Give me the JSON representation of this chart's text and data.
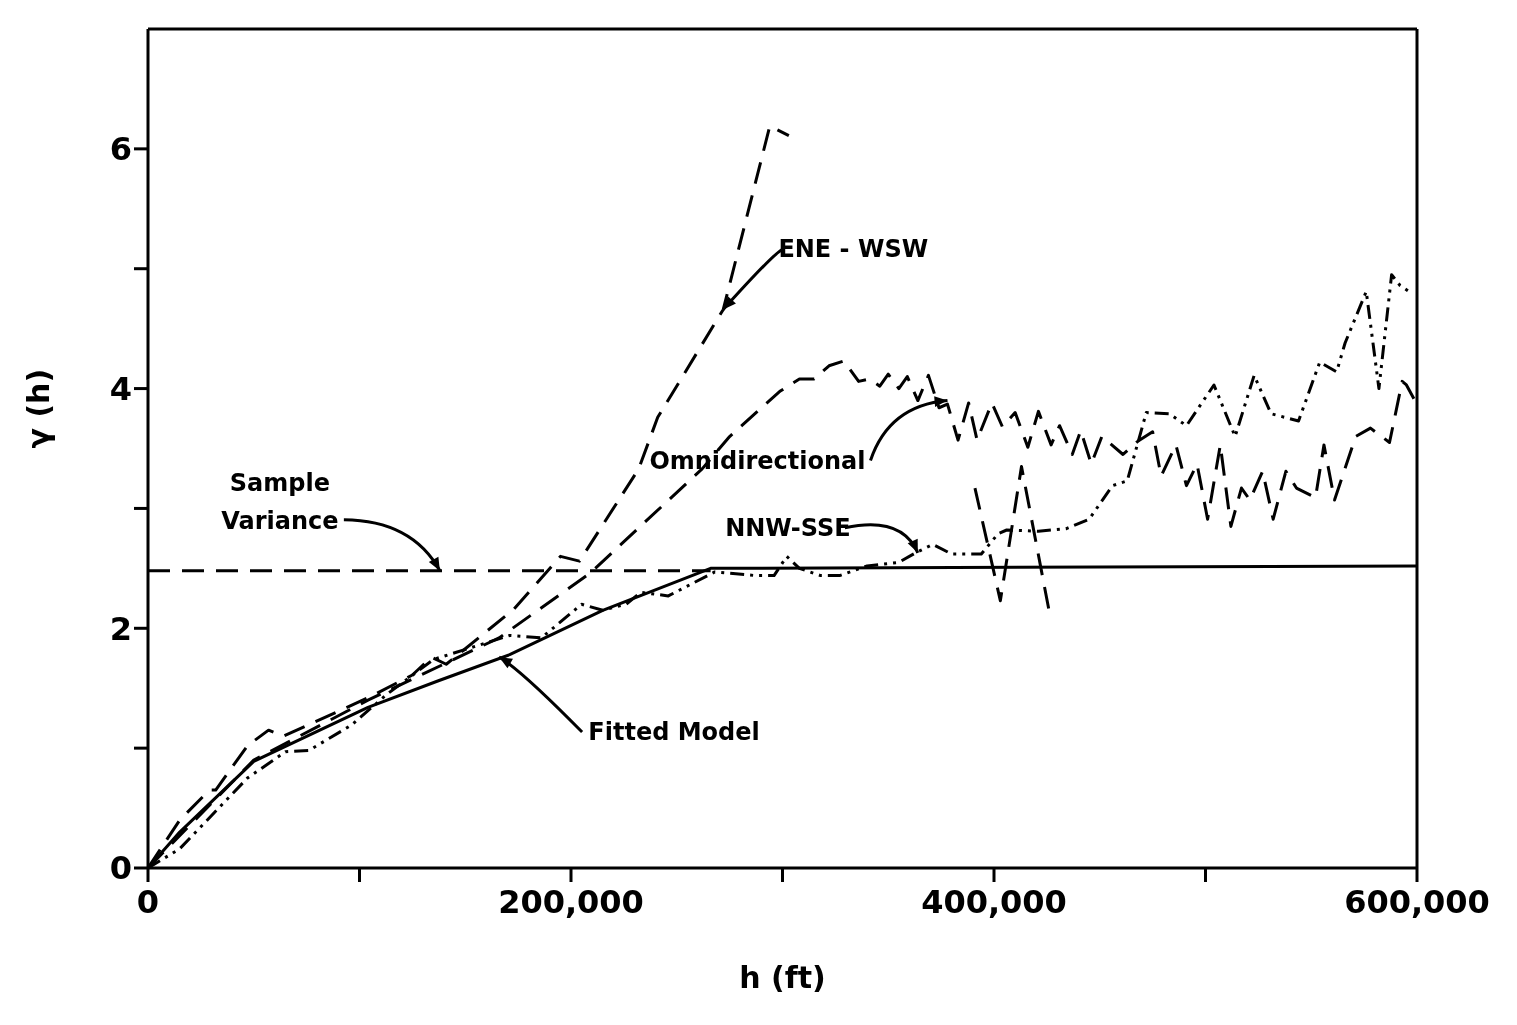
{
  "chart_data": {
    "type": "line",
    "xlabel": "h (ft)",
    "ylabel": "γ (h)",
    "xlim": [
      0,
      600000
    ],
    "ylim": [
      0,
      7
    ],
    "xticks": [
      {
        "value": 0,
        "label": "0"
      },
      {
        "value": 100000,
        "label": null
      },
      {
        "value": 200000,
        "label": "200,000"
      },
      {
        "value": 300000,
        "label": null
      },
      {
        "value": 400000,
        "label": "400,000"
      },
      {
        "value": 500000,
        "label": null
      },
      {
        "value": 600000,
        "label": "600,000"
      }
    ],
    "yticks": [
      0,
      {
        "value": 1,
        "label": null
      },
      2,
      {
        "value": 3,
        "label": null
      },
      4,
      {
        "value": 5,
        "label": null
      },
      6
    ],
    "marker": "none",
    "series": [
      {
        "color": "#000000",
        "line_style": "dashed",
        "x": [
          0,
          15000,
          29000,
          32000,
          47000,
          57000,
          64000,
          104000,
          125000,
          134000,
          141000,
          173000,
          195000,
          204000,
          232000,
          241000,
          272000,
          294000,
          303000,
          308000,
          350000,
          389000,
          391000,
          403000,
          413000,
          426000
        ],
        "values": [
          0,
          0.4,
          0.65,
          0.65,
          1.02,
          1.15,
          1.1,
          1.42,
          1.61,
          1.76,
          1.7,
          2.16,
          2.6,
          2.56,
          3.33,
          3.76,
          4.66,
          6.19,
          6.11,
          null,
          null,
          null,
          3.17,
          2.23,
          3.35,
          2.15
        ]
      },
      {
        "color": "#000000",
        "line_style": "dashed",
        "x": [
          0,
          50000,
          104000,
          166000,
          209000,
          262000,
          275000,
          290000,
          299000,
          308000,
          315000,
          322000,
          329000,
          336000,
          341000,
          346000,
          350000,
          355000,
          359000,
          364000,
          369000,
          374000,
          378000,
          383000,
          388000,
          392000,
          399000,
          404000,
          410000,
          416000,
          421000,
          427000,
          431000,
          437000,
          441000,
          446000,
          451000,
          461000,
          468000,
          475000,
          479000,
          486000,
          491000,
          496000,
          501000,
          507000,
          512000,
          517000,
          521000,
          527000,
          532000,
          538000,
          543000,
          552000,
          556000,
          561000,
          571000,
          578000,
          587000,
          593000,
          595000,
          599000
        ],
        "values": [
          0,
          0.9,
          1.4,
          1.92,
          2.46,
          3.33,
          3.6,
          3.84,
          3.98,
          4.08,
          4.08,
          4.19,
          4.23,
          4.06,
          4.08,
          4.02,
          4.12,
          4.0,
          4.1,
          3.9,
          4.11,
          3.84,
          3.87,
          3.57,
          3.88,
          3.57,
          3.88,
          3.68,
          3.8,
          3.51,
          3.81,
          3.53,
          3.69,
          3.45,
          3.65,
          3.37,
          3.6,
          3.45,
          3.56,
          3.64,
          3.27,
          3.53,
          3.19,
          3.37,
          2.91,
          3.53,
          2.85,
          3.17,
          3.07,
          3.31,
          2.91,
          3.31,
          3.17,
          3.09,
          3.53,
          3.07,
          3.6,
          3.67,
          3.55,
          4.06,
          4.03,
          3.9
        ]
      },
      {
        "color": "#000000",
        "line_style": "dotted",
        "x": [
          0,
          15000,
          47000,
          65000,
          76000,
          96000,
          113000,
          135000,
          171000,
          186000,
          205000,
          215000,
          226000,
          233000,
          246000,
          268000,
          287000,
          296000,
          302000,
          308000,
          318000,
          327000,
          340000,
          355000,
          363000,
          371000,
          380000,
          394000,
          402000,
          406000,
          421000,
          434000,
          445000,
          456000,
          463000,
          472000,
          483000,
          491000,
          504000,
          514000,
          523000,
          531000,
          544000,
          554000,
          562000,
          566000,
          576000,
          582000,
          588000,
          592000,
          597000
        ],
        "values": [
          0,
          0.16,
          0.75,
          0.97,
          0.98,
          1.19,
          1.45,
          1.74,
          1.94,
          1.92,
          2.2,
          2.15,
          2.2,
          2.3,
          2.27,
          2.47,
          2.44,
          2.44,
          2.6,
          2.5,
          2.44,
          2.44,
          2.52,
          2.55,
          2.63,
          2.7,
          2.62,
          2.62,
          2.79,
          2.82,
          2.81,
          2.83,
          2.91,
          3.19,
          3.23,
          3.8,
          3.79,
          3.69,
          4.03,
          3.6,
          4.11,
          3.79,
          3.73,
          4.22,
          4.14,
          4.38,
          4.81,
          4.0,
          4.95,
          4.86,
          4.8
        ]
      },
      {
        "color": "#000000",
        "line_style": "solid",
        "x": [
          0,
          15000,
          50000,
          104000,
          137000,
          171000,
          215000,
          266000,
          600000
        ],
        "values": [
          0,
          0.3,
          0.89,
          1.34,
          1.56,
          1.78,
          2.15,
          2.5,
          2.52
        ]
      },
      {
        "color": "#000000",
        "line_style": "dashed",
        "x": [
          0,
          266000
        ],
        "values": [
          2.48,
          2.48
        ]
      }
    ],
    "annotations": [
      {
        "text": "Sample Variance",
        "x": 138000,
        "y": 2.48
      },
      {
        "text": "ENE - WSW",
        "x": 272000,
        "y": 4.66
      },
      {
        "text": "Omnidirectional",
        "x": 378000,
        "y": 3.9
      },
      {
        "text": "NNW-SSE",
        "x": 364000,
        "y": 2.63
      },
      {
        "text": "Fitted Model",
        "x": 166000,
        "y": 1.76
      }
    ]
  }
}
